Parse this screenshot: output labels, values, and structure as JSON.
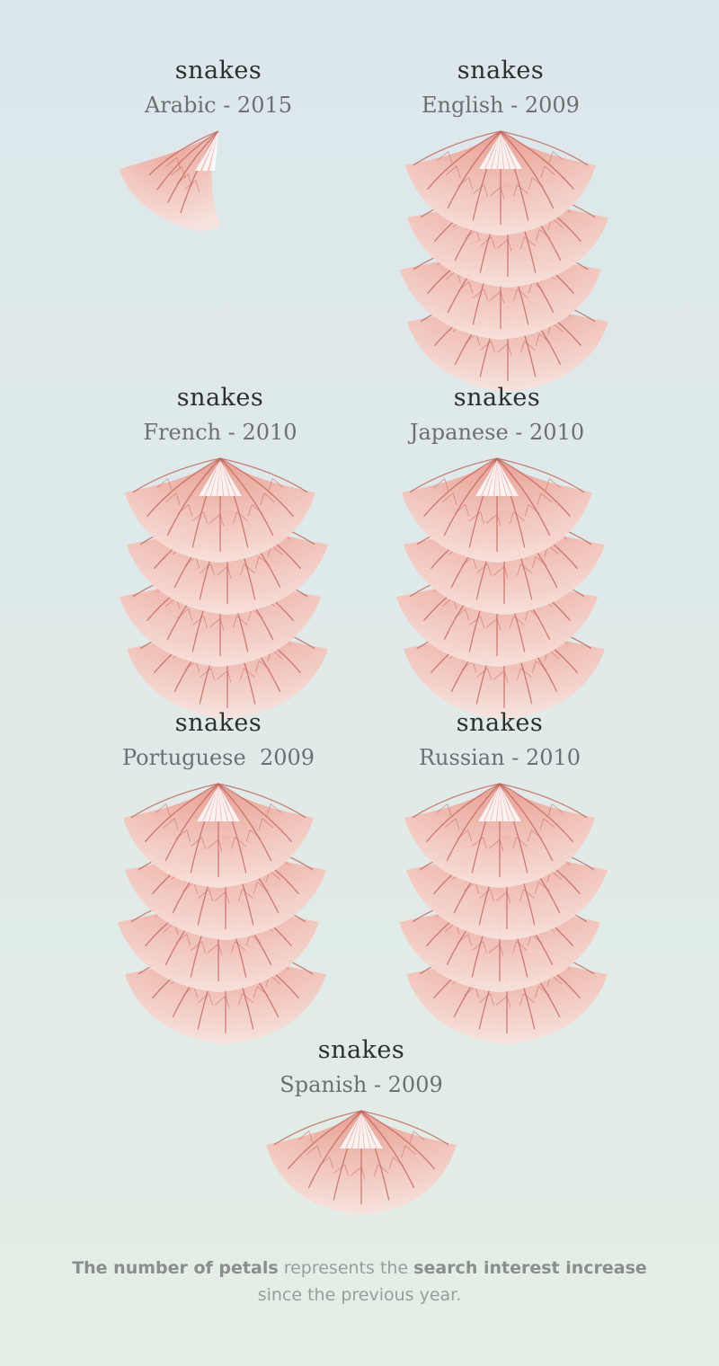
{
  "chart_data": {
    "type": "petal-glyphs",
    "panels": [
      {
        "term": "snakes",
        "subtitle": "Arabic - 2015",
        "petals": 1
      },
      {
        "term": "snakes",
        "subtitle": "English - 2009",
        "petals": 4
      },
      {
        "term": "snakes",
        "subtitle": "French - 2010",
        "petals": 4
      },
      {
        "term": "snakes",
        "subtitle": "Japanese - 2010",
        "petals": 4
      },
      {
        "term": "snakes",
        "subtitle": "Portuguese  2009",
        "petals": 4
      },
      {
        "term": "snakes",
        "subtitle": "Russian - 2010",
        "petals": 4
      },
      {
        "term": "snakes",
        "subtitle": "Spanish - 2009",
        "petals": 1
      }
    ],
    "colors": {
      "petal": "#f2c2b8",
      "vein": "#c1655c",
      "background": "#dde8eb"
    }
  },
  "caption": {
    "bold1": "The number of petals",
    "text1": " represents the ",
    "bold2": "search interest increase",
    "text2": "since the previous year."
  }
}
